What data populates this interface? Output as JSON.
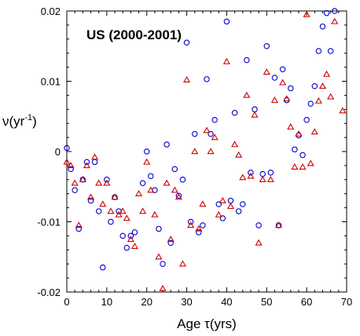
{
  "chart_data": {
    "type": "scatter",
    "title": "US (2000-2001)",
    "xlabel": "Age τ(yrs)",
    "ylabel": "ν(yr",
    "ylabel_sup": "-1",
    "ylabel_close": ")",
    "xlim": [
      0,
      70
    ],
    "ylim": [
      -0.02,
      0.02
    ],
    "x_ticks": [
      0,
      10,
      20,
      30,
      40,
      50,
      60,
      70
    ],
    "x_tick_labels": [
      "0",
      "10",
      "20",
      "30",
      "40",
      "50",
      "60",
      "70"
    ],
    "y_ticks": [
      0.02,
      0.01,
      0,
      -0.01,
      -0.02
    ],
    "y_tick_labels": [
      "0.02",
      "0.01",
      "0",
      "-0.01",
      "-0.02"
    ],
    "grid": false,
    "series": [
      {
        "marker": "circle",
        "color": "#0000cc",
        "points": [
          [
            0,
            0.0005
          ],
          [
            1,
            -0.0025
          ],
          [
            2,
            -0.0055
          ],
          [
            3,
            -0.011
          ],
          [
            4,
            -0.004
          ],
          [
            5,
            -0.0015
          ],
          [
            6,
            -0.007
          ],
          [
            7,
            -0.0015
          ],
          [
            8,
            -0.0085
          ],
          [
            9,
            -0.0165
          ],
          [
            10,
            -0.004
          ],
          [
            11,
            -0.01
          ],
          [
            12,
            -0.0065
          ],
          [
            13,
            -0.0085
          ],
          [
            14,
            -0.012
          ],
          [
            15,
            -0.0137
          ],
          [
            16,
            -0.012
          ],
          [
            17,
            -0.0115
          ],
          [
            19,
            -0.0045
          ],
          [
            20,
            0.0
          ],
          [
            21,
            -0.0035
          ],
          [
            22,
            -0.0055
          ],
          [
            23,
            -0.011
          ],
          [
            24,
            -0.016
          ],
          [
            25,
            0.001
          ],
          [
            26,
            -0.013
          ],
          [
            27,
            -0.0025
          ],
          [
            28,
            -0.0063
          ],
          [
            29,
            -0.004
          ],
          [
            30,
            0.0155
          ],
          [
            31,
            -0.01
          ],
          [
            32,
            0.0025
          ],
          [
            33,
            -0.0115
          ],
          [
            34,
            -0.0105
          ],
          [
            35,
            0.0103
          ],
          [
            36,
            0.0025
          ],
          [
            37,
            0.0045
          ],
          [
            38,
            -0.0075
          ],
          [
            39,
            -0.0095
          ],
          [
            40,
            0.0185
          ],
          [
            41,
            -0.007
          ],
          [
            42,
            0.0055
          ],
          [
            43,
            -0.0085
          ],
          [
            44,
            -0.0075
          ],
          [
            45,
            0.013
          ],
          [
            46,
            -0.003
          ],
          [
            47,
            0.006
          ],
          [
            48,
            -0.0105
          ],
          [
            49,
            -0.0032
          ],
          [
            50,
            0.015
          ],
          [
            51,
            -0.003
          ],
          [
            52,
            0.0105
          ],
          [
            53,
            -0.0105
          ],
          [
            54,
            0.0117
          ],
          [
            55,
            0.0073
          ],
          [
            56,
            0.009
          ],
          [
            57,
            0.0003
          ],
          [
            58,
            0.0023
          ],
          [
            59,
            -0.0005
          ],
          [
            60,
            0.0045
          ],
          [
            61,
            0.0068
          ],
          [
            62,
            0.0093
          ],
          [
            63,
            0.0143
          ],
          [
            64,
            0.0178
          ],
          [
            65,
            0.0197
          ],
          [
            66,
            0.0143
          ],
          [
            67,
            0.02
          ]
        ]
      },
      {
        "marker": "triangle",
        "color": "#cc0000",
        "points": [
          [
            0,
            -0.0015
          ],
          [
            1,
            -0.002
          ],
          [
            2,
            -0.0045
          ],
          [
            3,
            -0.0105
          ],
          [
            4,
            -0.004
          ],
          [
            5,
            -0.002
          ],
          [
            6,
            -0.0065
          ],
          [
            7,
            -0.0008
          ],
          [
            8,
            -0.0045
          ],
          [
            9,
            -0.0075
          ],
          [
            10,
            -0.0045
          ],
          [
            11,
            -0.0085
          ],
          [
            12,
            -0.0065
          ],
          [
            13,
            -0.009
          ],
          [
            14,
            -0.0085
          ],
          [
            15,
            -0.0095
          ],
          [
            16,
            -0.0125
          ],
          [
            17,
            -0.0135
          ],
          [
            18,
            -0.006
          ],
          [
            19,
            -0.0085
          ],
          [
            20,
            -0.0015
          ],
          [
            21,
            -0.0055
          ],
          [
            22,
            -0.009
          ],
          [
            23,
            -0.015
          ],
          [
            24,
            -0.0195
          ],
          [
            25,
            -0.0045
          ],
          [
            26,
            -0.0125
          ],
          [
            27,
            -0.0055
          ],
          [
            28,
            -0.0065
          ],
          [
            29,
            -0.016
          ],
          [
            30,
            0.0102
          ],
          [
            31,
            -0.0105
          ],
          [
            32,
            0.0
          ],
          [
            33,
            -0.011
          ],
          [
            34,
            -0.0075
          ],
          [
            35,
            0.003
          ],
          [
            36,
            0.0
          ],
          [
            37,
            0.002
          ],
          [
            38,
            -0.009
          ],
          [
            39,
            -0.007
          ],
          [
            40,
            0.0128
          ],
          [
            41,
            -0.0078
          ],
          [
            42,
            0.001
          ],
          [
            43,
            -0.0005
          ],
          [
            44,
            -0.0037
          ],
          [
            45,
            0.008
          ],
          [
            46,
            -0.0035
          ],
          [
            47,
            0.0052
          ],
          [
            48,
            -0.013
          ],
          [
            49,
            -0.004
          ],
          [
            50,
            0.0113
          ],
          [
            51,
            -0.004
          ],
          [
            52,
            0.0073
          ],
          [
            53,
            -0.0105
          ],
          [
            54,
            0.0098
          ],
          [
            55,
            0.0075
          ],
          [
            56,
            0.0035
          ],
          [
            57,
            -0.0022
          ],
          [
            58,
            0.0025
          ],
          [
            59,
            -0.0022
          ],
          [
            60,
            0.0195
          ],
          [
            61,
            -0.0017
          ],
          [
            62,
            0.0028
          ],
          [
            63,
            0.0072
          ],
          [
            64,
            0.0093
          ],
          [
            65,
            0.011
          ],
          [
            66,
            0.0078
          ],
          [
            67,
            0.0185
          ],
          [
            69,
            0.0058
          ]
        ]
      }
    ]
  }
}
